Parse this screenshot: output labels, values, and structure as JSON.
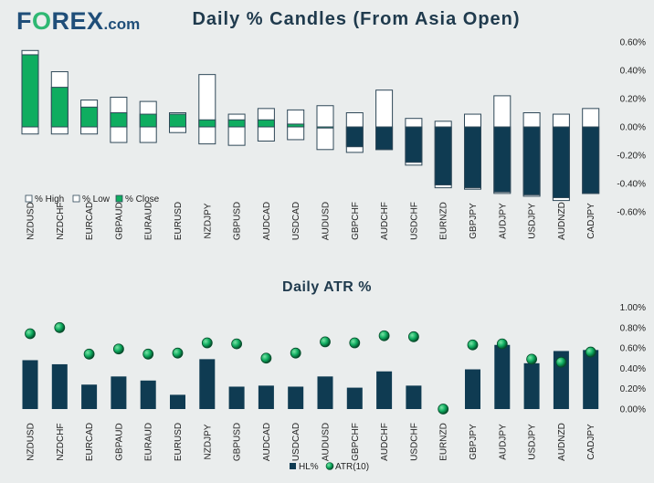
{
  "logo": {
    "part1": "F",
    "part2": "O",
    "part3": "REX",
    "part4": ".com"
  },
  "chart_data": [
    {
      "type": "bar",
      "title": "Daily % Candles (From Asia Open)",
      "categories": [
        "NZDUSD",
        "NZDCHF",
        "EURCAD",
        "GBPAUD",
        "EURAUD",
        "EURUSD",
        "NZDJPY",
        "GBPUSD",
        "AUDCAD",
        "USDCAD",
        "AUDUSD",
        "GBPCHF",
        "AUDCHF",
        "USDCHF",
        "EURNZD",
        "GBPJPY",
        "AUDJPY",
        "USDJPY",
        "AUDNZD",
        "CADJPY"
      ],
      "series": [
        {
          "name": "% High",
          "values": [
            0.54,
            0.39,
            0.19,
            0.21,
            0.18,
            0.1,
            0.37,
            0.09,
            0.13,
            0.12,
            0.15,
            0.1,
            0.26,
            0.06,
            0.04,
            0.09,
            0.22,
            0.1,
            0.09,
            0.13
          ]
        },
        {
          "name": "% Low",
          "values": [
            -0.05,
            -0.05,
            -0.05,
            -0.11,
            -0.11,
            -0.04,
            -0.12,
            -0.13,
            -0.1,
            -0.09,
            -0.16,
            -0.18,
            -0.16,
            -0.27,
            -0.43,
            -0.44,
            -0.47,
            -0.49,
            -0.52,
            -0.47
          ]
        },
        {
          "name": "% Close",
          "values": [
            0.51,
            0.28,
            0.14,
            0.1,
            0.09,
            0.09,
            0.05,
            0.05,
            0.05,
            0.02,
            0.0,
            -0.14,
            -0.16,
            -0.25,
            -0.41,
            -0.43,
            -0.46,
            -0.48,
            -0.5,
            -0.47
          ]
        }
      ],
      "yticks": [
        "0.60%",
        "0.40%",
        "0.20%",
        "0.00%",
        "-0.20%",
        "-0.40%",
        "-0.60%"
      ],
      "ylim": [
        -0.62,
        0.62
      ],
      "legend_position": "bottom-left",
      "colors": {
        "up": "#0fad60",
        "down": "#0f3b52",
        "outline": "#2f4858",
        "range": "#ffffff"
      }
    },
    {
      "type": "bar",
      "title": "Daily ATR %",
      "categories": [
        "NZDUSD",
        "NZDCHF",
        "EURCAD",
        "GBPAUD",
        "EURAUD",
        "EURUSD",
        "NZDJPY",
        "GBPUSD",
        "AUDCAD",
        "USDCAD",
        "AUDUSD",
        "GBPCHF",
        "AUDCHF",
        "USDCHF",
        "EURNZD",
        "GBPJPY",
        "AUDJPY",
        "USDJPY",
        "AUDNZD",
        "CADJPY"
      ],
      "series": [
        {
          "name": "HL%",
          "values": [
            0.48,
            0.44,
            0.24,
            0.32,
            0.28,
            0.14,
            0.49,
            0.22,
            0.23,
            0.22,
            0.32,
            0.21,
            0.37,
            0.23,
            0.0,
            0.39,
            0.63,
            0.45,
            0.57,
            0.58
          ]
        },
        {
          "name": "ATR(10)",
          "values": [
            0.74,
            0.8,
            0.54,
            0.59,
            0.54,
            0.55,
            0.65,
            0.64,
            0.5,
            0.55,
            0.66,
            0.65,
            0.72,
            0.71,
            0.0,
            0.63,
            0.64,
            0.49,
            0.46,
            0.56
          ]
        }
      ],
      "yticks": [
        "1.00%",
        "0.80%",
        "0.60%",
        "0.40%",
        "0.20%",
        "0.00%"
      ],
      "ylim": [
        0,
        1.0
      ],
      "legend_position": "bottom-center",
      "colors": {
        "bar": "#0f3b52",
        "dot": "#0fad60"
      }
    }
  ]
}
